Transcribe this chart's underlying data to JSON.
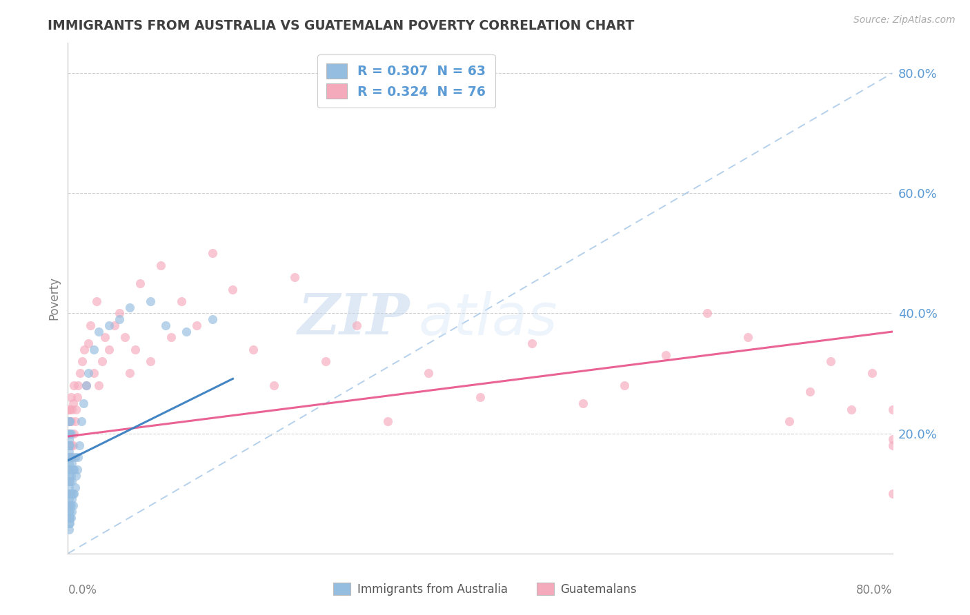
{
  "title": "IMMIGRANTS FROM AUSTRALIA VS GUATEMALAN POVERTY CORRELATION CHART",
  "source": "Source: ZipAtlas.com",
  "ylabel": "Poverty",
  "ytick_vals": [
    0.2,
    0.4,
    0.6,
    0.8
  ],
  "ytick_labels": [
    "20.0%",
    "40.0%",
    "60.0%",
    "80.0%"
  ],
  "xlim": [
    0.0,
    0.8
  ],
  "ylim": [
    0.0,
    0.85
  ],
  "blue_scatter_color": "#94bde0",
  "pink_scatter_color": "#f5aabc",
  "blue_line_color": "#3a7fc1",
  "pink_line_color": "#e8528a",
  "blue_dashed_color": "#a8c8e8",
  "legend_text1": "R = 0.307  N = 63",
  "legend_text2": "R = 0.324  N = 76",
  "legend_text_color": "#5b9bd5",
  "tick_label_color": "#5b9bd5",
  "axis_color": "#d0d0d0",
  "title_color": "#404040",
  "label_color": "#808080",
  "source_color": "#aaaaaa",
  "aus_line_x_end": 0.16,
  "gua_line_intercept": 0.195,
  "gua_line_slope": 0.218,
  "blue_dash_intercept": 0.0,
  "blue_dash_slope": 1.0,
  "blue_solid_intercept": 0.155,
  "blue_solid_slope": 0.85,
  "australia_x": [
    0.001,
    0.001,
    0.001,
    0.001,
    0.001,
    0.001,
    0.001,
    0.001,
    0.001,
    0.001,
    0.001,
    0.001,
    0.001,
    0.001,
    0.001,
    0.001,
    0.001,
    0.001,
    0.002,
    0.002,
    0.002,
    0.002,
    0.002,
    0.002,
    0.002,
    0.002,
    0.002,
    0.002,
    0.002,
    0.003,
    0.003,
    0.003,
    0.003,
    0.003,
    0.003,
    0.004,
    0.004,
    0.004,
    0.004,
    0.005,
    0.005,
    0.005,
    0.006,
    0.006,
    0.007,
    0.007,
    0.008,
    0.009,
    0.01,
    0.011,
    0.013,
    0.015,
    0.018,
    0.02,
    0.025,
    0.03,
    0.04,
    0.05,
    0.06,
    0.08,
    0.095,
    0.115,
    0.14
  ],
  "australia_y": [
    0.04,
    0.05,
    0.06,
    0.07,
    0.08,
    0.09,
    0.1,
    0.11,
    0.12,
    0.13,
    0.14,
    0.15,
    0.16,
    0.17,
    0.18,
    0.19,
    0.2,
    0.22,
    0.05,
    0.06,
    0.07,
    0.08,
    0.1,
    0.12,
    0.14,
    0.16,
    0.18,
    0.2,
    0.22,
    0.06,
    0.08,
    0.1,
    0.13,
    0.16,
    0.2,
    0.07,
    0.09,
    0.12,
    0.15,
    0.08,
    0.1,
    0.14,
    0.1,
    0.14,
    0.11,
    0.16,
    0.13,
    0.14,
    0.16,
    0.18,
    0.22,
    0.25,
    0.28,
    0.3,
    0.34,
    0.37,
    0.38,
    0.39,
    0.41,
    0.42,
    0.38,
    0.37,
    0.39
  ],
  "guatemala_x": [
    0.001,
    0.001,
    0.001,
    0.001,
    0.001,
    0.001,
    0.001,
    0.001,
    0.001,
    0.001,
    0.002,
    0.002,
    0.002,
    0.002,
    0.002,
    0.003,
    0.003,
    0.003,
    0.004,
    0.004,
    0.005,
    0.005,
    0.006,
    0.006,
    0.007,
    0.008,
    0.009,
    0.01,
    0.012,
    0.014,
    0.016,
    0.018,
    0.02,
    0.022,
    0.025,
    0.028,
    0.03,
    0.033,
    0.036,
    0.04,
    0.045,
    0.05,
    0.055,
    0.06,
    0.065,
    0.07,
    0.08,
    0.09,
    0.1,
    0.11,
    0.125,
    0.14,
    0.16,
    0.18,
    0.2,
    0.22,
    0.25,
    0.28,
    0.31,
    0.35,
    0.4,
    0.45,
    0.5,
    0.54,
    0.58,
    0.62,
    0.66,
    0.7,
    0.72,
    0.74,
    0.76,
    0.78,
    0.8,
    0.8,
    0.8,
    0.8
  ],
  "guatemala_y": [
    0.16,
    0.18,
    0.2,
    0.22,
    0.24,
    0.14,
    0.12,
    0.1,
    0.08,
    0.06,
    0.16,
    0.18,
    0.2,
    0.22,
    0.24,
    0.18,
    0.22,
    0.26,
    0.16,
    0.24,
    0.18,
    0.25,
    0.2,
    0.28,
    0.22,
    0.24,
    0.26,
    0.28,
    0.3,
    0.32,
    0.34,
    0.28,
    0.35,
    0.38,
    0.3,
    0.42,
    0.28,
    0.32,
    0.36,
    0.34,
    0.38,
    0.4,
    0.36,
    0.3,
    0.34,
    0.45,
    0.32,
    0.48,
    0.36,
    0.42,
    0.38,
    0.5,
    0.44,
    0.34,
    0.28,
    0.46,
    0.32,
    0.38,
    0.22,
    0.3,
    0.26,
    0.35,
    0.25,
    0.28,
    0.33,
    0.4,
    0.36,
    0.22,
    0.27,
    0.32,
    0.24,
    0.3,
    0.1,
    0.19,
    0.24,
    0.18
  ]
}
